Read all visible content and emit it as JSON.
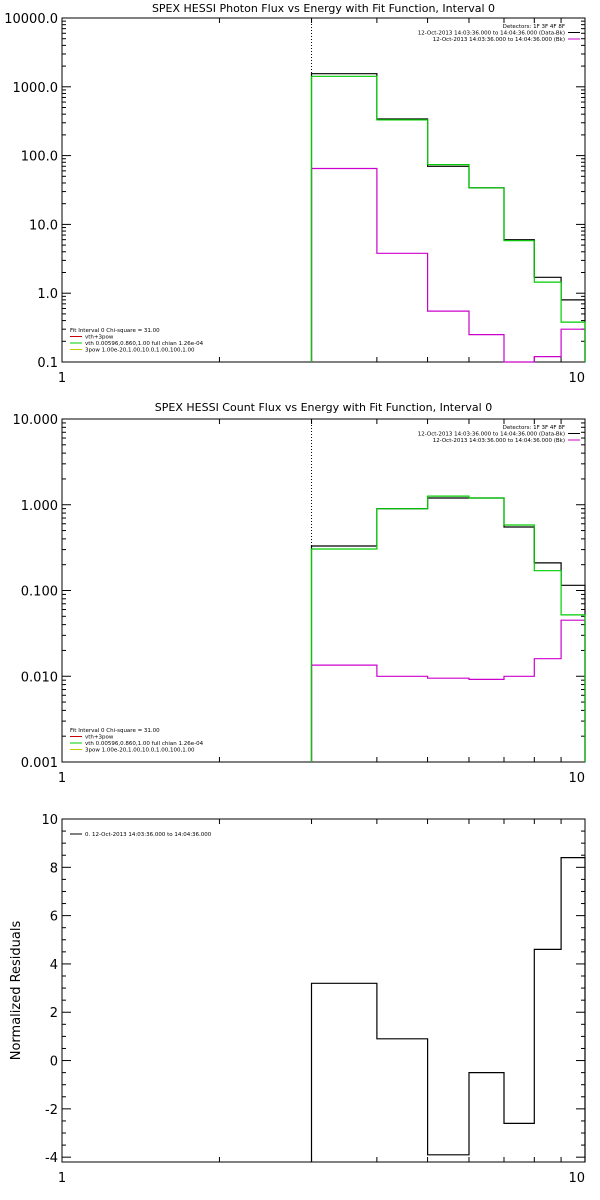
{
  "figure": {
    "colors": {
      "axes": "#000000",
      "data": "#000000",
      "bkg": "#cc00cc",
      "model": "#00cc00",
      "vth": "#cc0000",
      "powerlaw": "#c8c800"
    }
  },
  "chart_data": [
    {
      "id": "photon",
      "type": "line",
      "title": "SPEX HESSI Photon Flux vs Energy with Fit Function, Interval 0",
      "xlabel": "",
      "ylabel": "",
      "xscale": "log",
      "yscale": "log",
      "xlim": [
        1,
        10
      ],
      "ylim": [
        0.1,
        10000
      ],
      "yticks": [
        0.1,
        1,
        10,
        100,
        1000,
        10000
      ],
      "ytick_labels": [
        "0.1",
        "1.0",
        "10.0",
        "100.0",
        "1000.0",
        "10000.0"
      ],
      "xticks": [
        1,
        10
      ],
      "xtick_labels": [
        "1",
        "10"
      ],
      "fit_start_marker": 3.0,
      "bin_edges": [
        3,
        4,
        5,
        6,
        7,
        8,
        9,
        10
      ],
      "series": [
        {
          "name": "data",
          "color": "#000000",
          "values": [
            1550,
            340,
            70,
            34,
            6,
            1.7,
            0.8
          ]
        },
        {
          "name": "bkg",
          "color": "#cc00cc",
          "values": [
            65,
            3.8,
            0.55,
            0.25,
            0.1,
            0.12,
            0.3
          ]
        },
        {
          "name": "model",
          "color": "#00cc00",
          "values": [
            1420,
            330,
            74,
            34,
            5.8,
            1.45,
            0.38
          ]
        }
      ],
      "legend_tr": {
        "placement": "top-right",
        "lines": [
          {
            "text": "Detectors: 1F 3F 4F 8F",
            "color": ""
          },
          {
            "text": "12-Oct-2013 14:03:36.000 to 14:04:36.000 (Data-Bk)",
            "color": "#000000"
          },
          {
            "text": "12-Oct-2013 14:03:36.000 to 14:04:36.000 (Bk)",
            "color": "#cc00cc"
          }
        ]
      },
      "legend_bl": {
        "placement": "bottom-left",
        "lines": [
          {
            "text": "Fit Interval 0   Chi-square = 31.00",
            "color": ""
          },
          {
            "text": "vth+3pow",
            "color": "#cc0000"
          },
          {
            "text": "vth 0.00596,0.860,1.00   full chian 1.26e-04",
            "color": "#00cc00"
          },
          {
            "text": "3pow 1.00e-20,1.00,10.0,1.00,100,1.00",
            "color": "#c8c800"
          }
        ]
      }
    },
    {
      "id": "count",
      "type": "line",
      "title": "SPEX HESSI Count Flux vs Energy with Fit Function, Interval 0",
      "xlabel": "",
      "ylabel": "",
      "xscale": "log",
      "yscale": "log",
      "xlim": [
        1,
        10
      ],
      "ylim": [
        0.001,
        10
      ],
      "yticks": [
        0.001,
        0.01,
        0.1,
        1,
        10
      ],
      "ytick_labels": [
        "0.001",
        "0.010",
        "0.100",
        "1.000",
        "10.000"
      ],
      "xticks": [
        1,
        10
      ],
      "xtick_labels": [
        "1",
        "10"
      ],
      "fit_start_marker": 3.0,
      "bin_edges": [
        3,
        4,
        5,
        6,
        7,
        8,
        9,
        10
      ],
      "series": [
        {
          "name": "data",
          "color": "#000000",
          "values": [
            0.33,
            0.9,
            1.2,
            1.2,
            0.55,
            0.21,
            0.115
          ]
        },
        {
          "name": "bkg",
          "color": "#cc00cc",
          "values": [
            0.0135,
            0.01,
            0.0095,
            0.0092,
            0.01,
            0.016,
            0.045
          ]
        },
        {
          "name": "model",
          "color": "#00cc00",
          "values": [
            0.305,
            0.9,
            1.26,
            1.2,
            0.58,
            0.17,
            0.052
          ]
        }
      ],
      "legend_tr": {
        "placement": "top-right",
        "lines": [
          {
            "text": "Detectors: 1F 3F 4F 8F",
            "color": ""
          },
          {
            "text": "12-Oct-2013 14:03:36.000 to 14:04:36.000 (Data-Bk)",
            "color": "#000000"
          },
          {
            "text": "12-Oct-2013 14:03:36.000 to 14:04:36.000 (Bk)",
            "color": "#cc00cc"
          }
        ]
      },
      "legend_bl": {
        "placement": "bottom-left",
        "lines": [
          {
            "text": "Fit Interval 0   Chi-square = 31.00",
            "color": ""
          },
          {
            "text": "vth+3pow",
            "color": "#cc0000"
          },
          {
            "text": "vth 0.00596,0.860,1.00   full chian 1.26e-04",
            "color": "#00cc00"
          },
          {
            "text": "3pow 1.00e-20,1.00,10.0,1.00,100,1.00",
            "color": "#c8c800"
          }
        ]
      }
    },
    {
      "id": "resid",
      "type": "line",
      "title": "",
      "xlabel": "",
      "ylabel": "Normalized Residuals",
      "xscale": "log",
      "yscale": "linear",
      "xlim": [
        1,
        10
      ],
      "ylim": [
        -4.2,
        10
      ],
      "yticks": [
        -4,
        -2,
        0,
        2,
        4,
        6,
        8,
        10
      ],
      "ytick_labels": [
        "-4",
        "-2",
        "0",
        "2",
        "4",
        "6",
        "8",
        "10"
      ],
      "xticks": [
        1,
        10
      ],
      "xtick_labels": [
        "1",
        "10"
      ],
      "bin_edges": [
        3,
        4,
        5,
        6,
        7,
        8,
        9,
        10
      ],
      "series": [
        {
          "name": "0. 12-Oct-2013 14:03:36.000 to 14:04:36.000",
          "color": "#000000",
          "values": [
            3.2,
            0.9,
            -3.9,
            -0.5,
            -2.6,
            4.6,
            8.4
          ]
        }
      ],
      "legend_tl": {
        "placement": "top-left",
        "lines": [
          {
            "text": "0. 12-Oct-2013 14:03:36.000 to 14:04:36.000",
            "color": "#000000"
          }
        ]
      }
    }
  ]
}
